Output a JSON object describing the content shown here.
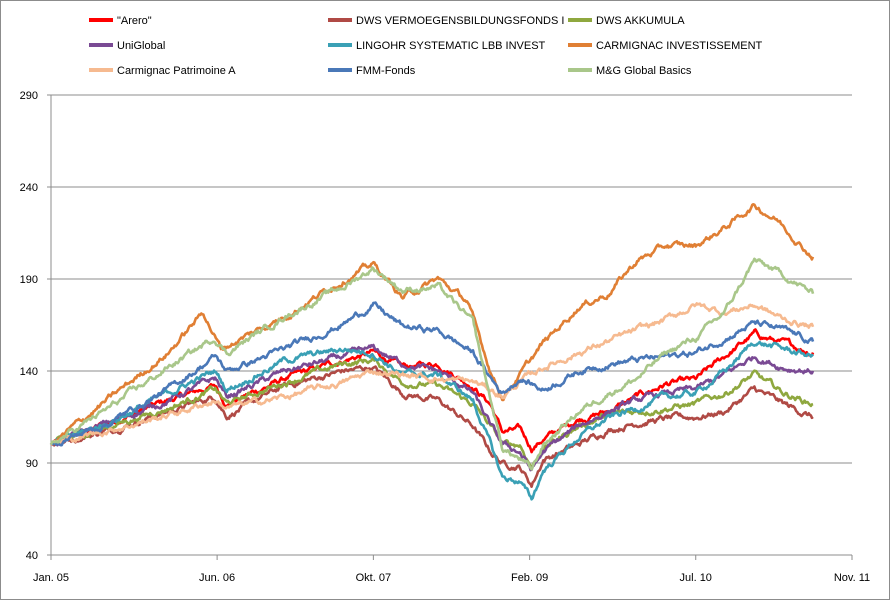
{
  "chart_data": {
    "type": "line",
    "title": "",
    "xlabel": "",
    "ylabel": "",
    "ylim": [
      40,
      290
    ],
    "yticks": [
      40,
      90,
      140,
      190,
      240,
      290
    ],
    "xlim": [
      2005.0,
      2011.833
    ],
    "xticks": [
      {
        "label": "Jan. 05",
        "value": 2005.0
      },
      {
        "label": "Jun. 06",
        "value": 2006.417
      },
      {
        "label": "Okt. 07",
        "value": 2007.75
      },
      {
        "label": "Feb. 09",
        "value": 2009.083
      },
      {
        "label": "Jul. 10",
        "value": 2010.5
      },
      {
        "label": "Nov. 11",
        "value": 2011.833
      }
    ],
    "grid": true,
    "legend_position": "top",
    "series": [
      {
        "name": "\"Arero\"",
        "color": "#ff0000",
        "points": [
          [
            2005.0,
            100
          ],
          [
            2005.5,
            112
          ],
          [
            2006.0,
            124
          ],
          [
            2006.4,
            132
          ],
          [
            2006.5,
            122
          ],
          [
            2007.0,
            136
          ],
          [
            2007.5,
            146
          ],
          [
            2007.75,
            150
          ],
          [
            2008.0,
            142
          ],
          [
            2008.3,
            144
          ],
          [
            2008.6,
            132
          ],
          [
            2008.75,
            122
          ],
          [
            2008.85,
            107
          ],
          [
            2009.0,
            108
          ],
          [
            2009.1,
            98
          ],
          [
            2009.2,
            103
          ],
          [
            2009.5,
            114
          ],
          [
            2009.75,
            118
          ],
          [
            2010.0,
            126
          ],
          [
            2010.25,
            133
          ],
          [
            2010.5,
            135
          ],
          [
            2010.75,
            148
          ],
          [
            2011.0,
            160
          ],
          [
            2011.25,
            155
          ],
          [
            2011.5,
            150
          ]
        ]
      },
      {
        "name": "DWS VERMOEGENSBILDUNGSFONDS  I",
        "color": "#b04a45",
        "points": [
          [
            2005.0,
            100
          ],
          [
            2005.5,
            108
          ],
          [
            2006.0,
            118
          ],
          [
            2006.4,
            126
          ],
          [
            2006.5,
            116
          ],
          [
            2007.0,
            132
          ],
          [
            2007.5,
            140
          ],
          [
            2007.75,
            142
          ],
          [
            2008.0,
            128
          ],
          [
            2008.3,
            124
          ],
          [
            2008.6,
            110
          ],
          [
            2008.75,
            96
          ],
          [
            2008.85,
            90
          ],
          [
            2009.0,
            88
          ],
          [
            2009.1,
            78
          ],
          [
            2009.2,
            92
          ],
          [
            2009.5,
            100
          ],
          [
            2009.75,
            108
          ],
          [
            2010.0,
            112
          ],
          [
            2010.25,
            114
          ],
          [
            2010.5,
            115
          ],
          [
            2010.75,
            118
          ],
          [
            2011.0,
            130
          ],
          [
            2011.25,
            122
          ],
          [
            2011.5,
            115
          ]
        ]
      },
      {
        "name": "DWS AKKUMULA",
        "color": "#8fa83f",
        "points": [
          [
            2005.0,
            100
          ],
          [
            2005.5,
            110
          ],
          [
            2006.0,
            120
          ],
          [
            2006.4,
            130
          ],
          [
            2006.5,
            122
          ],
          [
            2007.0,
            134
          ],
          [
            2007.5,
            144
          ],
          [
            2007.75,
            146
          ],
          [
            2008.0,
            134
          ],
          [
            2008.3,
            132
          ],
          [
            2008.6,
            122
          ],
          [
            2008.75,
            110
          ],
          [
            2008.85,
            100
          ],
          [
            2009.0,
            100
          ],
          [
            2009.1,
            88
          ],
          [
            2009.2,
            98
          ],
          [
            2009.5,
            110
          ],
          [
            2009.75,
            116
          ],
          [
            2010.0,
            118
          ],
          [
            2010.25,
            120
          ],
          [
            2010.5,
            122
          ],
          [
            2010.75,
            128
          ],
          [
            2011.0,
            138
          ],
          [
            2011.25,
            128
          ],
          [
            2011.5,
            122
          ]
        ]
      },
      {
        "name": "UniGlobal",
        "color": "#7a4a94",
        "points": [
          [
            2005.0,
            100
          ],
          [
            2005.5,
            112
          ],
          [
            2006.0,
            124
          ],
          [
            2006.4,
            136
          ],
          [
            2006.5,
            126
          ],
          [
            2007.0,
            140
          ],
          [
            2007.5,
            148
          ],
          [
            2007.75,
            152
          ],
          [
            2008.0,
            144
          ],
          [
            2008.3,
            140
          ],
          [
            2008.6,
            128
          ],
          [
            2008.75,
            110
          ],
          [
            2008.85,
            100
          ],
          [
            2009.0,
            96
          ],
          [
            2009.1,
            86
          ],
          [
            2009.2,
            96
          ],
          [
            2009.5,
            110
          ],
          [
            2009.75,
            118
          ],
          [
            2010.0,
            124
          ],
          [
            2010.25,
            128
          ],
          [
            2010.5,
            130
          ],
          [
            2010.75,
            138
          ],
          [
            2011.0,
            148
          ],
          [
            2011.25,
            142
          ],
          [
            2011.5,
            140
          ]
        ]
      },
      {
        "name": "LINGOHR SYSTEMATIC  LBB INVEST",
        "color": "#3aa0b5",
        "points": [
          [
            2005.0,
            100
          ],
          [
            2005.5,
            112
          ],
          [
            2006.0,
            128
          ],
          [
            2006.4,
            140
          ],
          [
            2006.5,
            130
          ],
          [
            2007.0,
            146
          ],
          [
            2007.5,
            152
          ],
          [
            2007.75,
            150
          ],
          [
            2008.0,
            138
          ],
          [
            2008.3,
            138
          ],
          [
            2008.6,
            124
          ],
          [
            2008.75,
            100
          ],
          [
            2008.85,
            82
          ],
          [
            2009.0,
            80
          ],
          [
            2009.1,
            70
          ],
          [
            2009.2,
            86
          ],
          [
            2009.5,
            104
          ],
          [
            2009.75,
            114
          ],
          [
            2010.0,
            120
          ],
          [
            2010.25,
            126
          ],
          [
            2010.5,
            128
          ],
          [
            2010.75,
            140
          ],
          [
            2011.0,
            156
          ],
          [
            2011.25,
            152
          ],
          [
            2011.5,
            148
          ]
        ]
      },
      {
        "name": "CARMIGNAC  INVESTISSEMENT",
        "color": "#e07f34",
        "points": [
          [
            2005.0,
            100
          ],
          [
            2005.5,
            125
          ],
          [
            2006.0,
            150
          ],
          [
            2006.3,
            172
          ],
          [
            2006.45,
            152
          ],
          [
            2007.0,
            170
          ],
          [
            2007.5,
            190
          ],
          [
            2007.75,
            198
          ],
          [
            2008.0,
            180
          ],
          [
            2008.3,
            190
          ],
          [
            2008.55,
            178
          ],
          [
            2008.75,
            140
          ],
          [
            2008.85,
            126
          ],
          [
            2009.0,
            138
          ],
          [
            2009.2,
            155
          ],
          [
            2009.5,
            175
          ],
          [
            2009.75,
            182
          ],
          [
            2010.0,
            200
          ],
          [
            2010.25,
            208
          ],
          [
            2010.5,
            208
          ],
          [
            2010.75,
            218
          ],
          [
            2011.0,
            230
          ],
          [
            2011.2,
            222
          ],
          [
            2011.5,
            202
          ]
        ]
      },
      {
        "name": "Carmignac Patrimoine A",
        "color": "#f6ba90",
        "points": [
          [
            2005.0,
            100
          ],
          [
            2005.5,
            108
          ],
          [
            2006.0,
            116
          ],
          [
            2006.4,
            124
          ],
          [
            2006.5,
            120
          ],
          [
            2007.0,
            126
          ],
          [
            2007.5,
            134
          ],
          [
            2007.75,
            140
          ],
          [
            2008.0,
            138
          ],
          [
            2008.3,
            136
          ],
          [
            2008.6,
            134
          ],
          [
            2008.75,
            130
          ],
          [
            2008.85,
            126
          ],
          [
            2009.0,
            134
          ],
          [
            2009.2,
            142
          ],
          [
            2009.5,
            150
          ],
          [
            2009.75,
            156
          ],
          [
            2010.0,
            162
          ],
          [
            2010.25,
            168
          ],
          [
            2010.5,
            176
          ],
          [
            2010.75,
            172
          ],
          [
            2011.0,
            176
          ],
          [
            2011.25,
            168
          ],
          [
            2011.5,
            164
          ]
        ]
      },
      {
        "name": "FMM-Fonds",
        "color": "#4a78b8",
        "points": [
          [
            2005.0,
            100
          ],
          [
            2005.5,
            112
          ],
          [
            2006.0,
            130
          ],
          [
            2006.4,
            148
          ],
          [
            2006.5,
            140
          ],
          [
            2007.0,
            152
          ],
          [
            2007.5,
            166
          ],
          [
            2007.75,
            176
          ],
          [
            2008.0,
            164
          ],
          [
            2008.3,
            162
          ],
          [
            2008.6,
            150
          ],
          [
            2008.75,
            136
          ],
          [
            2008.85,
            128
          ],
          [
            2009.0,
            136
          ],
          [
            2009.2,
            130
          ],
          [
            2009.5,
            140
          ],
          [
            2009.75,
            144
          ],
          [
            2010.0,
            146
          ],
          [
            2010.25,
            148
          ],
          [
            2010.5,
            150
          ],
          [
            2010.75,
            158
          ],
          [
            2011.0,
            166
          ],
          [
            2011.25,
            162
          ],
          [
            2011.5,
            156
          ]
        ]
      },
      {
        "name": "M&G Global Basics",
        "color": "#a9c78a",
        "points": [
          [
            2005.0,
            100
          ],
          [
            2005.5,
            120
          ],
          [
            2006.0,
            142
          ],
          [
            2006.4,
            158
          ],
          [
            2006.5,
            150
          ],
          [
            2007.0,
            170
          ],
          [
            2007.5,
            186
          ],
          [
            2007.75,
            196
          ],
          [
            2008.0,
            184
          ],
          [
            2008.3,
            186
          ],
          [
            2008.6,
            166
          ],
          [
            2008.75,
            124
          ],
          [
            2008.85,
            98
          ],
          [
            2009.0,
            92
          ],
          [
            2009.1,
            86
          ],
          [
            2009.2,
            100
          ],
          [
            2009.5,
            118
          ],
          [
            2009.75,
            128
          ],
          [
            2010.0,
            136
          ],
          [
            2010.25,
            150
          ],
          [
            2010.5,
            158
          ],
          [
            2010.75,
            172
          ],
          [
            2011.0,
            200
          ],
          [
            2011.25,
            192
          ],
          [
            2011.5,
            182
          ]
        ]
      }
    ]
  }
}
